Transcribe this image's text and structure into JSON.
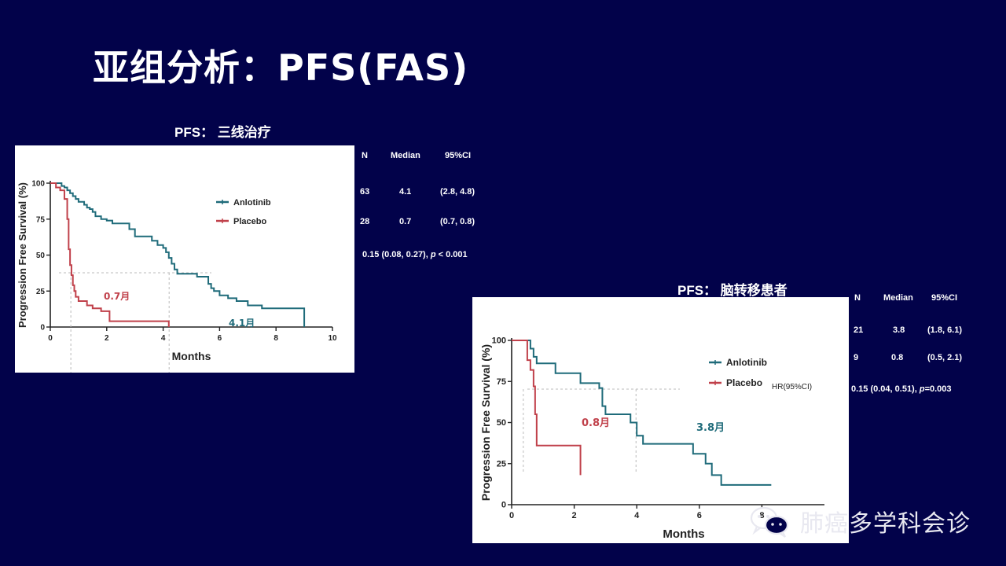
{
  "slide": {
    "title": "亚组分析：PFS(FAS)"
  },
  "panels": [
    {
      "title": "PFS： 三线治疗",
      "stats": {
        "headers": [
          "N",
          "Median",
          "95%CI"
        ],
        "rows": [
          [
            "63",
            "4.1",
            "(2.8, 4.8)"
          ],
          [
            "28",
            "0.7",
            "(0.7, 0.8)"
          ]
        ],
        "hr_label": "",
        "hr_value": "0.15 (0.08, 0.27), ",
        "hr_p_symbol": "p",
        "hr_p_text": " < 0.001"
      }
    },
    {
      "title": "PFS： 脑转移患者",
      "stats": {
        "headers": [
          "N",
          "Median",
          "95%CI"
        ],
        "rows": [
          [
            "21",
            "3.8",
            "(1.8, 6.1)"
          ],
          [
            "9",
            "0.8",
            "(0.5, 2.1)"
          ]
        ],
        "hr_label": "HR(95%CI)",
        "hr_value": "0.15 (0.04, 0.51), ",
        "hr_p_symbol": "p",
        "hr_p_text": "=0.003"
      }
    }
  ],
  "chart_data": [
    {
      "type": "line",
      "ylabel": "Progression Free Survival (%)",
      "xlabel": "Months",
      "xlim": [
        0,
        10
      ],
      "ylim": [
        0,
        100
      ],
      "xticks": [
        0,
        2,
        4,
        6,
        8,
        10
      ],
      "yticks": [
        0,
        25,
        50,
        75,
        100
      ],
      "legend": "right",
      "series": [
        {
          "name": "Anlotinib",
          "color": "#1f6b7a",
          "x": [
            0,
            0.4,
            0.5,
            0.6,
            0.7,
            0.8,
            0.9,
            1.0,
            1.2,
            1.3,
            1.4,
            1.5,
            1.6,
            1.8,
            2.0,
            2.2,
            2.5,
            2.8,
            3.0,
            3.3,
            3.6,
            3.8,
            4.0,
            4.1,
            4.2,
            4.3,
            4.4,
            4.5,
            4.8,
            5.2,
            5.6,
            5.7,
            5.8,
            6.0,
            6.3,
            6.6,
            7.0,
            7.5,
            8.0,
            8.5,
            9.0
          ],
          "y": [
            100,
            98,
            97,
            95,
            93,
            91,
            89,
            87,
            85,
            83,
            82,
            80,
            77,
            75,
            74,
            72,
            72,
            68,
            63,
            63,
            60,
            57,
            55,
            52,
            48,
            44,
            40,
            37,
            37,
            35,
            30,
            27,
            25,
            22,
            20,
            18,
            15,
            13,
            13,
            13,
            0
          ]
        },
        {
          "name": "Placebo",
          "color": "#c0404a",
          "x": [
            0,
            0.2,
            0.35,
            0.5,
            0.6,
            0.65,
            0.7,
            0.75,
            0.8,
            0.85,
            0.9,
            1.0,
            1.3,
            1.5,
            1.8,
            2.1,
            3.0,
            4.2
          ],
          "y": [
            100,
            97,
            95,
            89,
            75,
            54,
            43,
            36,
            29,
            25,
            21,
            18,
            15,
            13,
            11,
            4,
            4,
            0
          ]
        }
      ],
      "annotations": [
        "0.7月",
        "4.1月"
      ],
      "medians": [
        0.7,
        4.1
      ]
    },
    {
      "type": "line",
      "ylabel": "Progression Free Survival (%)",
      "xlabel": "Months",
      "xlim": [
        0,
        10
      ],
      "ylim": [
        0,
        100
      ],
      "xticks": [
        0,
        2,
        4,
        6,
        8
      ],
      "yticks": [
        0,
        25,
        50,
        75,
        100
      ],
      "legend": "right",
      "series": [
        {
          "name": "Anlotinib",
          "color": "#1f6b7a",
          "x": [
            0,
            0.5,
            0.6,
            0.7,
            0.8,
            1.3,
            1.4,
            2.2,
            2.8,
            2.9,
            3.0,
            3.8,
            4.0,
            4.2,
            5.4,
            5.8,
            6.2,
            6.4,
            6.7,
            7.0,
            8.3
          ],
          "y": [
            100,
            100,
            95,
            90,
            86,
            86,
            80,
            74,
            71,
            60,
            55,
            50,
            42,
            37,
            37,
            31,
            25,
            18,
            12,
            12,
            12
          ]
        },
        {
          "name": "Placebo",
          "color": "#c0404a",
          "x": [
            0,
            0.4,
            0.5,
            0.6,
            0.7,
            0.75,
            0.8,
            2.2
          ],
          "y": [
            100,
            100,
            88,
            82,
            72,
            55,
            36,
            18
          ]
        }
      ],
      "annotations": [
        "0.8月",
        "3.8月"
      ],
      "medians": [
        0.8,
        3.8
      ]
    }
  ],
  "watermark": {
    "text": "肺癌多学科会诊",
    "icon": "wechat-icon"
  },
  "colors": {
    "background": "#02024a",
    "anlotinib": "#1f6b7a",
    "placebo": "#c0404a"
  }
}
